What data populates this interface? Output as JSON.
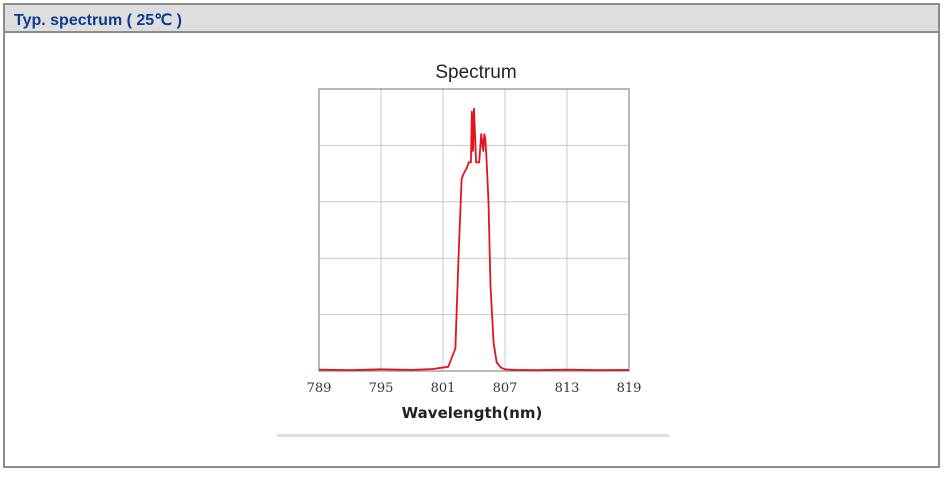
{
  "header": {
    "title": "Typ. spectrum ( 25℃ )"
  },
  "chart_data": {
    "type": "line",
    "title": "Spectrum",
    "xlabel": "Wavelength(nm)",
    "ylabel": "",
    "xlim": [
      789,
      819
    ],
    "ylim": [
      0,
      100
    ],
    "x_ticks": [
      789,
      795,
      801,
      807,
      813,
      819
    ],
    "y_gridlines": 5,
    "grid": true,
    "legend": "none",
    "color": "#e3141b",
    "series": [
      {
        "x": [
          789,
          792,
          795,
          798,
          800,
          801.5,
          802.2,
          802.5,
          802.8,
          803.0,
          803.3,
          803.5,
          803.7,
          803.8,
          803.9,
          804.0,
          804.2,
          804.5,
          804.7,
          804.9,
          805.0,
          805.1,
          805.2,
          805.4,
          805.6,
          805.9,
          806.2,
          806.6,
          807.0,
          808,
          810,
          813,
          816,
          819
        ],
        "y": [
          0.5,
          0.3,
          0.6,
          0.4,
          0.7,
          1.5,
          8,
          40,
          68,
          70,
          72,
          74,
          74,
          92,
          78,
          93,
          74,
          74,
          84,
          78,
          84,
          82,
          76,
          60,
          30,
          10,
          3,
          1.2,
          0.6,
          0.4,
          0.3,
          0.5,
          0.3,
          0.4
        ]
      }
    ]
  }
}
